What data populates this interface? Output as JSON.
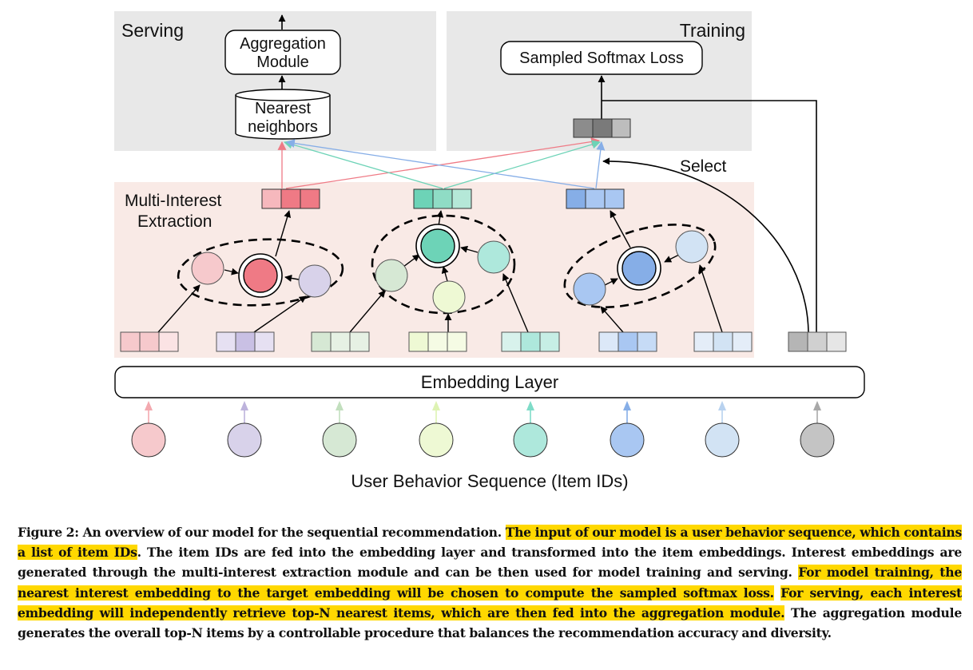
{
  "diagram": {
    "serving_label": "Serving",
    "training_label": "Training",
    "aggregation_line1": "Aggregation",
    "aggregation_line2": "Module",
    "nearest_line1": "Nearest",
    "nearest_line2": "neighbors",
    "softmax_label": "Sampled Softmax Loss",
    "select_label": "Select",
    "multi_interest_line1": "Multi-Interest",
    "multi_interest_line2": "Extraction",
    "embedding_label": "Embedding Layer",
    "sequence_label": "User Behavior Sequence (Item IDs)"
  },
  "colors": {
    "panel_gray": "#e8e8e8",
    "panel_pink": "#f9eae6",
    "interest_red": "#ef7a85",
    "interest_green": "#6dd3b7",
    "interest_blue": "#86aee7",
    "item_colors": [
      "#f6c9cc",
      "#d8d2ea",
      "#d6e8d4",
      "#eef9d4",
      "#aee8dc",
      "#a9c7f2",
      "#d2e3f4",
      "#c4c4c4"
    ]
  },
  "caption": {
    "figure_label": "Figure 2:",
    "s1": "An overview of our model for the sequential recommendation.",
    "h1": "The input of our model is a user behavior sequence, which contains a list of item IDs",
    "s2": ". The item IDs are fed into the embedding layer and transformed into the item embeddings. Interest embeddings are generated through the multi-interest extraction module and can be then used for model training and serving.",
    "h2": "For model training, the nearest interest embedding to the target embedding will be chosen to compute the sampled softmax loss.",
    "h3": "For serving, each interest embedding will independently retrieve top-N nearest items, which are then fed into the aggregation module.",
    "s3": "The aggregation module generates the overall top-N items by a controllable procedure that balances the recommendation accuracy and diversity."
  }
}
